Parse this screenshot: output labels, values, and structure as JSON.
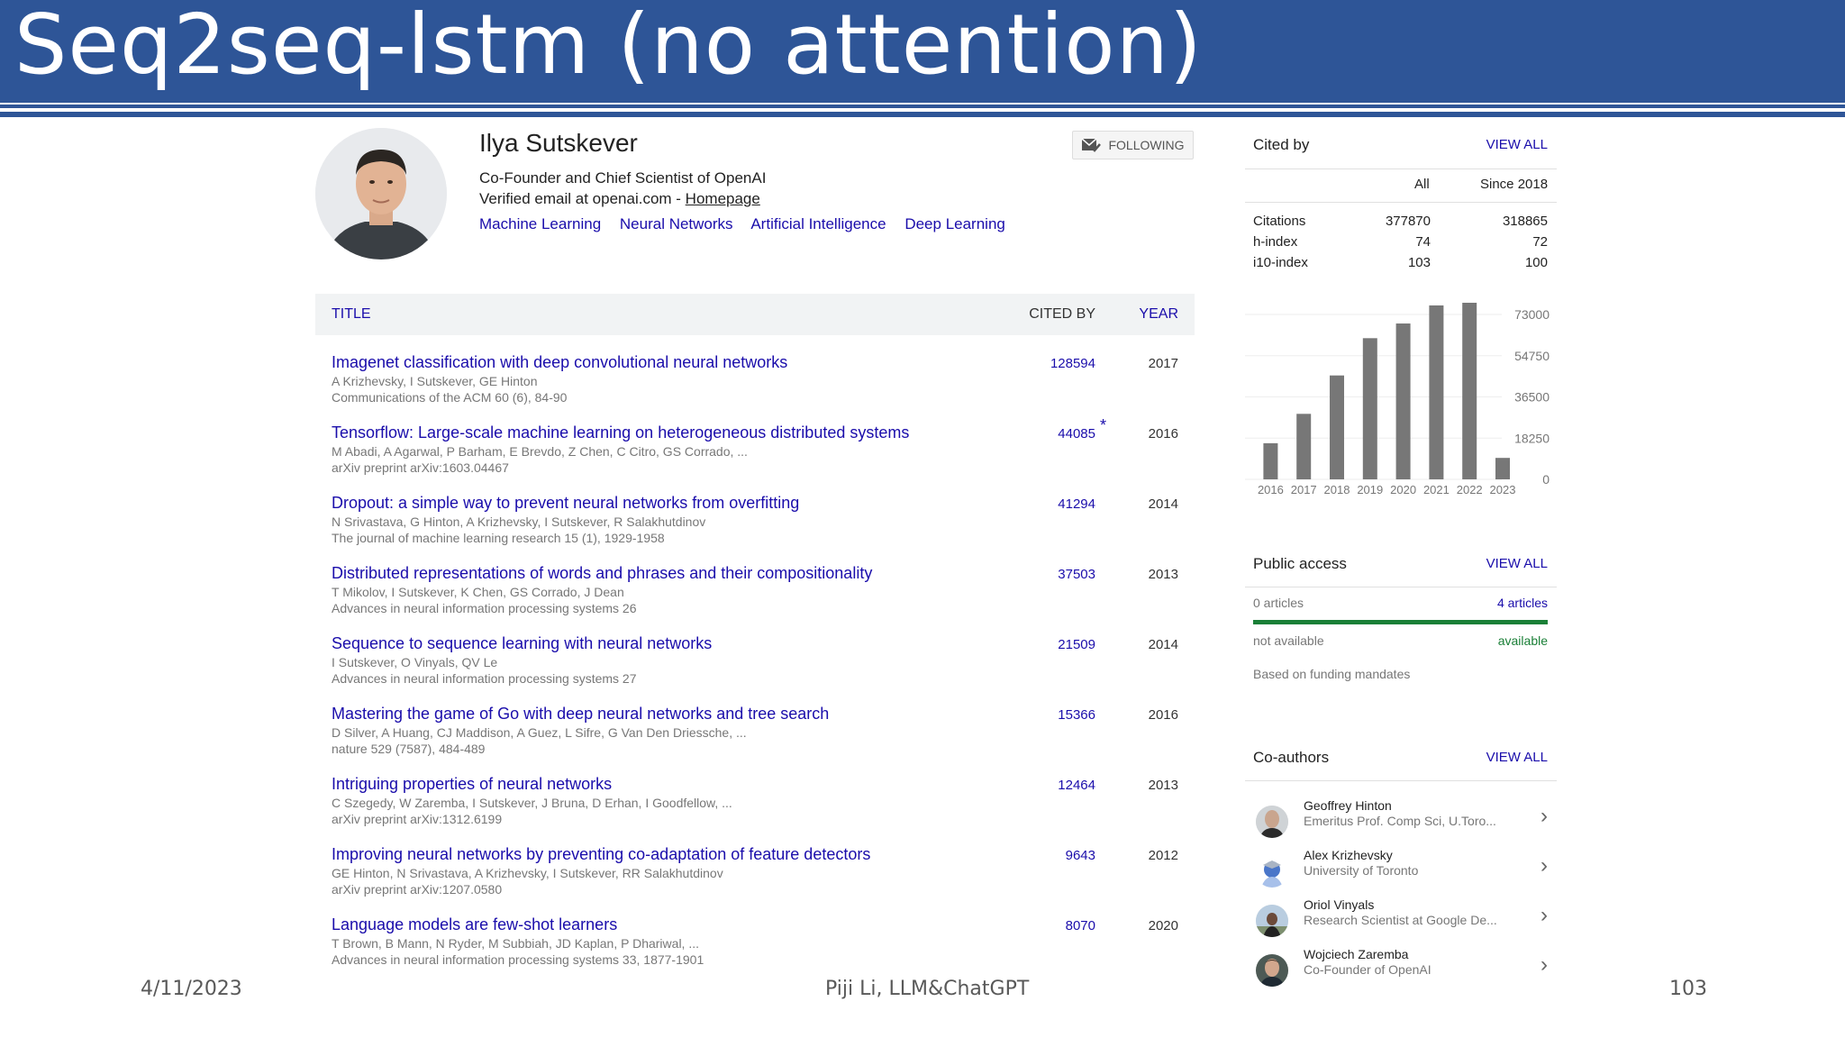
{
  "slide": {
    "title": "Seq2seq-lstm (no attention)",
    "date": "4/11/2023",
    "author": "Piji Li, LLM&ChatGPT",
    "page": "103"
  },
  "profile": {
    "name": "Ilya Sutskever",
    "affiliation": "Co-Founder and Chief Scientist of OpenAI",
    "email_text": "Verified email at openai.com - ",
    "homepage_label": "Homepage",
    "follow_label": "FOLLOWING",
    "interests": [
      "Machine Learning",
      "Neural Networks",
      "Artificial Intelligence",
      "Deep Learning"
    ]
  },
  "table": {
    "headers": {
      "title": "TITLE",
      "cited_by": "CITED BY",
      "year": "YEAR"
    },
    "rows": [
      {
        "title": "Imagenet classification with deep convolutional neural networks",
        "authors": "A Krizhevsky, I Sutskever, GE Hinton",
        "venue": "Communications of the ACM 60 (6), 84-90",
        "cited": "128594",
        "year": "2017",
        "star": ""
      },
      {
        "title": "Tensorflow: Large-scale machine learning on heterogeneous distributed systems",
        "authors": "M Abadi, A Agarwal, P Barham, E Brevdo, Z Chen, C Citro, GS Corrado, ...",
        "venue": "arXiv preprint arXiv:1603.04467",
        "cited": "44085",
        "year": "2016",
        "star": "*"
      },
      {
        "title": "Dropout: a simple way to prevent neural networks from overfitting",
        "authors": "N Srivastava, G Hinton, A Krizhevsky, I Sutskever, R Salakhutdinov",
        "venue": "The journal of machine learning research 15 (1), 1929-1958",
        "cited": "41294",
        "year": "2014",
        "star": ""
      },
      {
        "title": "Distributed representations of words and phrases and their compositionality",
        "authors": "T Mikolov, I Sutskever, K Chen, GS Corrado, J Dean",
        "venue": "Advances in neural information processing systems 26",
        "cited": "37503",
        "year": "2013",
        "star": ""
      },
      {
        "title": "Sequence to sequence learning with neural networks",
        "authors": "I Sutskever, O Vinyals, QV Le",
        "venue": "Advances in neural information processing systems 27",
        "cited": "21509",
        "year": "2014",
        "star": ""
      },
      {
        "title": "Mastering the game of Go with deep neural networks and tree search",
        "authors": "D Silver, A Huang, CJ Maddison, A Guez, L Sifre, G Van Den Driessche, ...",
        "venue": "nature 529 (7587), 484-489",
        "cited": "15366",
        "year": "2016",
        "star": ""
      },
      {
        "title": "Intriguing properties of neural networks",
        "authors": "C Szegedy, W Zaremba, I Sutskever, J Bruna, D Erhan, I Goodfellow, ...",
        "venue": "arXiv preprint arXiv:1312.6199",
        "cited": "12464",
        "year": "2013",
        "star": ""
      },
      {
        "title": "Improving neural networks by preventing co-adaptation of feature detectors",
        "authors": "GE Hinton, N Srivastava, A Krizhevsky, I Sutskever, RR Salakhutdinov",
        "venue": "arXiv preprint arXiv:1207.0580",
        "cited": "9643",
        "year": "2012",
        "star": ""
      },
      {
        "title": "Language models are few-shot learners",
        "authors": "T Brown, B Mann, N Ryder, M Subbiah, JD Kaplan, P Dhariwal, ...",
        "venue": "Advances in neural information processing systems 33, 1877-1901",
        "cited": "8070",
        "year": "2020",
        "star": ""
      }
    ]
  },
  "cited_by": {
    "title": "Cited by",
    "view_all": "VIEW ALL",
    "col_all": "All",
    "col_since": "Since 2018",
    "metrics": [
      {
        "label": "Citations",
        "all": "377870",
        "since": "318865"
      },
      {
        "label": "h-index",
        "all": "74",
        "since": "72"
      },
      {
        "label": "i10-index",
        "all": "103",
        "since": "100"
      }
    ]
  },
  "chart_data": {
    "type": "bar",
    "categories": [
      "2016",
      "2017",
      "2018",
      "2019",
      "2020",
      "2021",
      "2022",
      "2023"
    ],
    "values": [
      16000,
      29000,
      46000,
      62500,
      69000,
      77000,
      78800,
      9500
    ],
    "ylim": [
      0,
      73000
    ],
    "yticks": [
      "73000",
      "54750",
      "36500",
      "18250",
      "0"
    ],
    "ytick_values": [
      73000,
      54750,
      36500,
      18250,
      0
    ],
    "color": "#777777"
  },
  "public_access": {
    "title": "Public access",
    "view_all": "VIEW ALL",
    "left_count": "0 articles",
    "right_count": "4 articles",
    "left_label": "not available",
    "right_label": "available",
    "note": "Based on funding mandates",
    "available_fraction": 1.0
  },
  "coauthors": {
    "title": "Co-authors",
    "view_all": "VIEW ALL",
    "items": [
      {
        "name": "Geoffrey Hinton",
        "affiliation": "Emeritus Prof. Comp Sci, U.Toro..."
      },
      {
        "name": "Alex Krizhevsky",
        "affiliation": "University of Toronto"
      },
      {
        "name": "Oriol Vinyals",
        "affiliation": "Research Scientist at Google De..."
      },
      {
        "name": "Wojciech Zaremba",
        "affiliation": "Co-Founder of OpenAI"
      }
    ]
  }
}
